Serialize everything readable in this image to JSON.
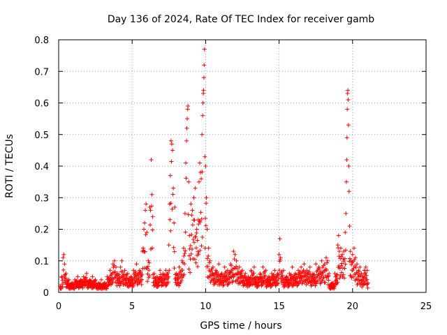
{
  "chart_data": {
    "type": "scatter",
    "title": "Day 136 of 2024, Rate Of TEC Index for receiver gamb",
    "xlabel": "GPS time / hours",
    "ylabel": "ROTI / TECUs",
    "xlim": [
      0,
      25
    ],
    "ylim": [
      0,
      0.8
    ],
    "xticks": [
      0,
      5,
      10,
      15,
      20,
      25
    ],
    "yticks": [
      0,
      0.1,
      0.2,
      0.3,
      0.4,
      0.5,
      0.6,
      0.7,
      0.8
    ],
    "grid": true,
    "marker": "+",
    "color": "#ff0000",
    "series": [
      {
        "points": [
          [
            0.1,
            0.02
          ],
          [
            0.2,
            0.05
          ],
          [
            0.3,
            0.11
          ],
          [
            0.35,
            0.12
          ],
          [
            0.4,
            0.09
          ],
          [
            0.5,
            0.06
          ],
          [
            0.7,
            0.04
          ],
          [
            0.9,
            0.03
          ],
          [
            1.1,
            0.04
          ],
          [
            1.3,
            0.05
          ],
          [
            1.5,
            0.04
          ],
          [
            1.7,
            0.05
          ],
          [
            1.9,
            0.06
          ],
          [
            2.1,
            0.04
          ],
          [
            2.3,
            0.05
          ],
          [
            2.5,
            0.04
          ],
          [
            2.7,
            0.03
          ],
          [
            2.9,
            0.04
          ],
          [
            3.1,
            0.03
          ],
          [
            3.3,
            0.05
          ],
          [
            3.5,
            0.07
          ],
          [
            3.7,
            0.09
          ],
          [
            3.8,
            0.1
          ],
          [
            3.9,
            0.08
          ],
          [
            4.0,
            0.06
          ],
          [
            4.2,
            0.08
          ],
          [
            4.3,
            0.1
          ],
          [
            4.5,
            0.07
          ],
          [
            4.7,
            0.06
          ],
          [
            4.9,
            0.05
          ],
          [
            5.1,
            0.07
          ],
          [
            5.3,
            0.09
          ],
          [
            5.5,
            0.07
          ],
          [
            5.7,
            0.13
          ],
          [
            5.75,
            0.14
          ],
          [
            5.8,
            0.2
          ],
          [
            5.85,
            0.22
          ],
          [
            5.9,
            0.26
          ],
          [
            5.95,
            0.28
          ],
          [
            6.0,
            0.19
          ],
          [
            6.1,
            0.1
          ],
          [
            6.2,
            0.27
          ],
          [
            6.25,
            0.26
          ],
          [
            6.3,
            0.42
          ],
          [
            6.35,
            0.31
          ],
          [
            6.4,
            0.24
          ],
          [
            6.5,
            0.06
          ],
          [
            6.7,
            0.05
          ],
          [
            6.9,
            0.07
          ],
          [
            7.1,
            0.06
          ],
          [
            7.3,
            0.07
          ],
          [
            7.5,
            0.15
          ],
          [
            7.55,
            0.28
          ],
          [
            7.6,
            0.37
          ],
          [
            7.65,
            0.48
          ],
          [
            7.7,
            0.47
          ],
          [
            7.75,
            0.45
          ],
          [
            7.8,
            0.33
          ],
          [
            7.85,
            0.22
          ],
          [
            7.9,
            0.27
          ],
          [
            8.0,
            0.06
          ],
          [
            8.2,
            0.08
          ],
          [
            8.4,
            0.1
          ],
          [
            8.5,
            0.14
          ],
          [
            8.6,
            0.25
          ],
          [
            8.65,
            0.41
          ],
          [
            8.7,
            0.48
          ],
          [
            8.72,
            0.52
          ],
          [
            8.75,
            0.55
          ],
          [
            8.78,
            0.58
          ],
          [
            8.8,
            0.59
          ],
          [
            8.85,
            0.35
          ],
          [
            8.9,
            0.18
          ],
          [
            9.0,
            0.28
          ],
          [
            9.1,
            0.26
          ],
          [
            9.2,
            0.3
          ],
          [
            9.3,
            0.33
          ],
          [
            9.4,
            0.2
          ],
          [
            9.5,
            0.23
          ],
          [
            9.55,
            0.35
          ],
          [
            9.6,
            0.41
          ],
          [
            9.65,
            0.38
          ],
          [
            9.7,
            0.36
          ],
          [
            9.75,
            0.5
          ],
          [
            9.8,
            0.56
          ],
          [
            9.82,
            0.6
          ],
          [
            9.84,
            0.63
          ],
          [
            9.86,
            0.64
          ],
          [
            9.88,
            0.68
          ],
          [
            9.9,
            0.72
          ],
          [
            9.92,
            0.77
          ],
          [
            9.95,
            0.43
          ],
          [
            10.0,
            0.4
          ],
          [
            10.05,
            0.3
          ],
          [
            10.1,
            0.2
          ],
          [
            10.2,
            0.14
          ],
          [
            10.3,
            0.1
          ],
          [
            10.5,
            0.08
          ],
          [
            10.7,
            0.07
          ],
          [
            10.9,
            0.09
          ],
          [
            11.1,
            0.06
          ],
          [
            11.3,
            0.08
          ],
          [
            11.5,
            0.07
          ],
          [
            11.7,
            0.09
          ],
          [
            11.9,
            0.13
          ],
          [
            12.0,
            0.12
          ],
          [
            12.1,
            0.1
          ],
          [
            12.3,
            0.08
          ],
          [
            12.5,
            0.07
          ],
          [
            12.7,
            0.06
          ],
          [
            12.9,
            0.05
          ],
          [
            13.1,
            0.07
          ],
          [
            13.3,
            0.08
          ],
          [
            13.5,
            0.05
          ],
          [
            13.7,
            0.06
          ],
          [
            13.9,
            0.08
          ],
          [
            14.1,
            0.07
          ],
          [
            14.3,
            0.05
          ],
          [
            14.5,
            0.06
          ],
          [
            14.7,
            0.07
          ],
          [
            14.9,
            0.06
          ],
          [
            15.0,
            0.12
          ],
          [
            15.05,
            0.17
          ],
          [
            15.1,
            0.11
          ],
          [
            15.3,
            0.07
          ],
          [
            15.5,
            0.05
          ],
          [
            15.7,
            0.06
          ],
          [
            15.9,
            0.08
          ],
          [
            16.1,
            0.06
          ],
          [
            16.3,
            0.07
          ],
          [
            16.5,
            0.08
          ],
          [
            16.7,
            0.09
          ],
          [
            16.9,
            0.07
          ],
          [
            17.1,
            0.08
          ],
          [
            17.3,
            0.06
          ],
          [
            17.5,
            0.09
          ],
          [
            17.7,
            0.08
          ],
          [
            17.9,
            0.1
          ],
          [
            18.1,
            0.09
          ],
          [
            18.2,
            0.11
          ],
          [
            18.3,
            0.1
          ],
          [
            18.4,
            0.06
          ],
          [
            18.6,
            0.03
          ],
          [
            18.8,
            0.06
          ],
          [
            19.0,
            0.15
          ],
          [
            19.05,
            0.18
          ],
          [
            19.1,
            0.13
          ],
          [
            19.2,
            0.14
          ],
          [
            19.3,
            0.12
          ],
          [
            19.4,
            0.13
          ],
          [
            19.5,
            0.19
          ],
          [
            19.55,
            0.25
          ],
          [
            19.58,
            0.35
          ],
          [
            19.6,
            0.42
          ],
          [
            19.62,
            0.49
          ],
          [
            19.64,
            0.58
          ],
          [
            19.66,
            0.63
          ],
          [
            19.68,
            0.64
          ],
          [
            19.7,
            0.61
          ],
          [
            19.72,
            0.53
          ],
          [
            19.74,
            0.4
          ],
          [
            19.76,
            0.32
          ],
          [
            19.8,
            0.21
          ],
          [
            19.85,
            0.13
          ],
          [
            19.9,
            0.1
          ],
          [
            20.0,
            0.12
          ],
          [
            20.1,
            0.14
          ],
          [
            20.2,
            0.11
          ],
          [
            20.3,
            0.09
          ],
          [
            20.4,
            0.07
          ],
          [
            20.5,
            0.08
          ],
          [
            20.6,
            0.06
          ],
          [
            20.7,
            0.05
          ],
          [
            20.8,
            0.07
          ],
          [
            20.9,
            0.08
          ],
          [
            21.0,
            0.07
          ],
          [
            21.05,
            0.03
          ]
        ]
      }
    ]
  }
}
